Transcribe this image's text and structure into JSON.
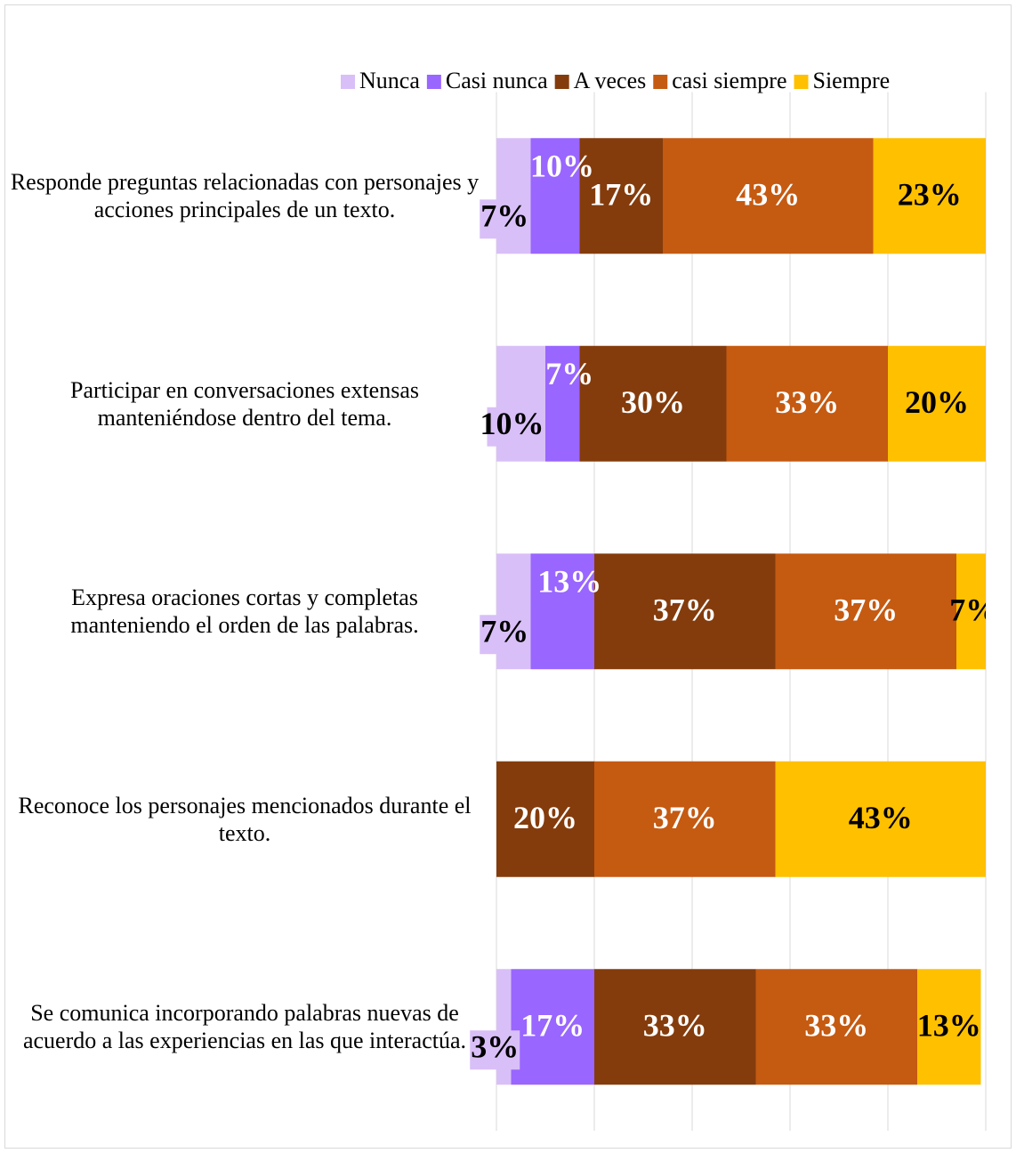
{
  "chart_data": {
    "type": "stacked_barh",
    "categories": [
      "Responde preguntas relacionadas con personajes y acciones principales de un texto.",
      "Participar en conversaciones extensas manteniéndose dentro del tema.",
      "Expresa oraciones cortas y completas manteniendo el orden de las palabras.",
      "Reconoce los personajes mencionados durante el texto.",
      "Se comunica incorporando palabras nuevas de acuerdo a las experiencias en las que interactúa."
    ],
    "series": [
      {
        "name": "Nunca",
        "color": "#d9bff7",
        "label_color": "#000000",
        "values": [
          7,
          10,
          7,
          0,
          3
        ],
        "value_labels": [
          "7%",
          "10%",
          "7%",
          null,
          "3%"
        ]
      },
      {
        "name": "Casi nunca",
        "color": "#9966ff",
        "label_color": "#ffffff",
        "values": [
          10,
          7,
          13,
          0,
          17
        ],
        "value_labels": [
          "10%",
          "7%",
          "13%",
          null,
          "17%"
        ]
      },
      {
        "name": "A veces",
        "color": "#843c0c",
        "label_color": "#ffffff",
        "values": [
          17,
          30,
          37,
          20,
          33
        ],
        "value_labels": [
          "17%",
          "30%",
          "37%",
          "20%",
          "33%"
        ]
      },
      {
        "name": "casi siempre",
        "color": "#c55a11",
        "label_color": "#ffffff",
        "values": [
          43,
          33,
          37,
          37,
          33
        ],
        "value_labels": [
          "43%",
          "33%",
          "37%",
          "37%",
          "33%"
        ]
      },
      {
        "name": "Siempre",
        "color": "#ffc000",
        "label_color": "#000000",
        "values": [
          23,
          20,
          7,
          43,
          13
        ],
        "value_labels": [
          "23%",
          "20%",
          "7%",
          "43%",
          "13%"
        ]
      }
    ],
    "xlim": [
      0,
      100
    ],
    "xticks": [
      0,
      20,
      40,
      60,
      80,
      100
    ],
    "grid": true,
    "legend": "top"
  }
}
